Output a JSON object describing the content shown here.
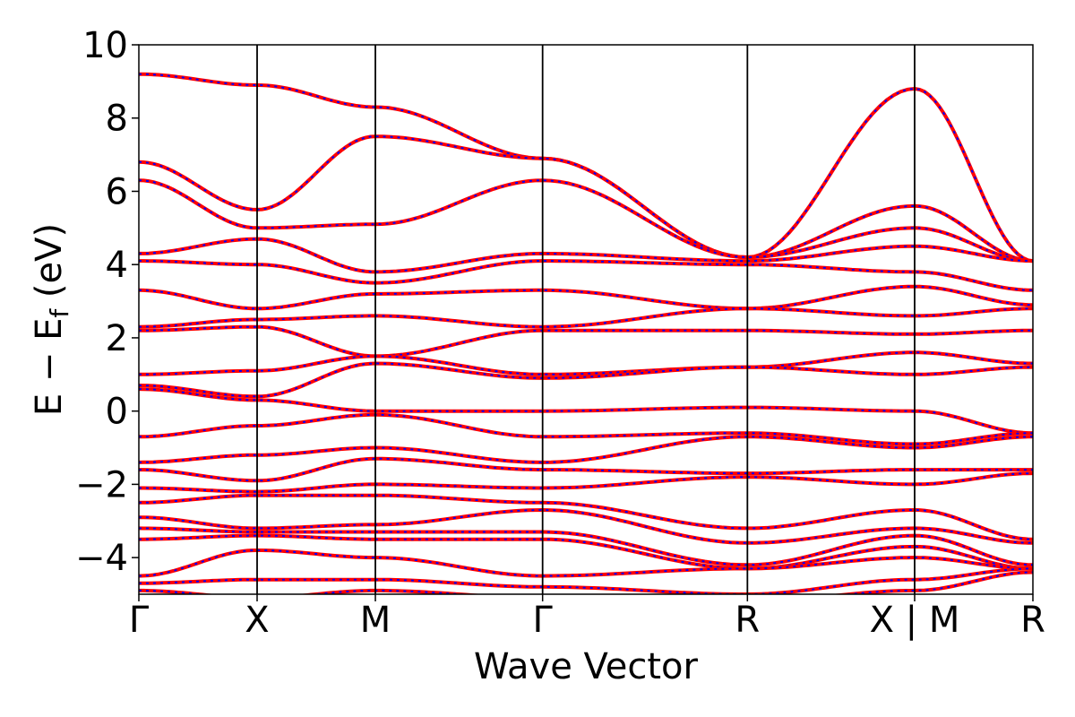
{
  "chart_data": {
    "type": "line",
    "xlabel": "Wave Vector",
    "ylabel": "E − E",
    "ylabel_sub": "f",
    "ylabel_unit": " (eV)",
    "ylim": [
      -5,
      10
    ],
    "yticks": [
      -4,
      -2,
      0,
      2,
      4,
      6,
      8,
      10
    ],
    "ytick_labels": [
      "−4",
      "−2",
      "0",
      "2",
      "4",
      "6",
      "8",
      "10"
    ],
    "grid": false,
    "legend": "none",
    "kpath": [
      {
        "label": "Γ",
        "pos": 0.0
      },
      {
        "label": "X",
        "pos": 0.5
      },
      {
        "label": "M",
        "pos": 1.0
      },
      {
        "label": "Γ",
        "pos": 1.707
      },
      {
        "label": "R",
        "pos": 2.573
      },
      {
        "label": "X | M",
        "pos": 3.28
      },
      {
        "label": "R",
        "pos": 3.78
      }
    ],
    "colors": {
      "band_primary": "#ff0000",
      "band_secondary": "#0000ff",
      "axis": "#000000"
    },
    "series": [
      {
        "values": [
          9.2,
          8.9,
          8.3,
          6.9,
          4.2,
          8.8,
          4.1
        ]
      },
      {
        "values": [
          6.8,
          5.5,
          7.5,
          6.9,
          4.2,
          5.6,
          4.1
        ]
      },
      {
        "values": [
          6.3,
          5.0,
          5.1,
          6.3,
          4.2,
          5.0,
          4.1
        ]
      },
      {
        "values": [
          4.3,
          4.7,
          3.8,
          4.3,
          4.1,
          4.5,
          4.1
        ]
      },
      {
        "values": [
          4.1,
          4.0,
          3.5,
          4.1,
          4.0,
          3.8,
          3.3
        ]
      },
      {
        "values": [
          3.3,
          2.8,
          3.2,
          3.3,
          2.8,
          3.4,
          2.9
        ]
      },
      {
        "values": [
          2.3,
          2.5,
          2.6,
          2.3,
          2.8,
          2.6,
          2.8
        ]
      },
      {
        "values": [
          2.2,
          2.3,
          1.5,
          2.2,
          2.2,
          2.1,
          2.2
        ]
      },
      {
        "values": [
          1.0,
          1.1,
          1.5,
          1.0,
          1.2,
          1.6,
          1.3
        ]
      },
      {
        "values": [
          0.7,
          0.4,
          1.3,
          0.9,
          1.2,
          1.0,
          1.2
        ]
      },
      {
        "values": [
          0.6,
          0.3,
          0.0,
          0.0,
          0.1,
          0.0,
          -0.6
        ]
      },
      {
        "values": [
          -0.7,
          -0.4,
          -0.1,
          -0.7,
          -0.6,
          -0.9,
          -0.6
        ]
      },
      {
        "values": [
          -1.4,
          -1.2,
          -1.0,
          -1.4,
          -0.7,
          -1.0,
          -0.7
        ]
      },
      {
        "values": [
          -1.6,
          -1.9,
          -1.3,
          -1.6,
          -1.7,
          -1.6,
          -1.6
        ]
      },
      {
        "values": [
          -2.1,
          -2.2,
          -2.0,
          -2.1,
          -1.8,
          -2.0,
          -1.7
        ]
      },
      {
        "values": [
          -2.5,
          -2.3,
          -2.3,
          -2.5,
          -3.2,
          -2.7,
          -3.5
        ]
      },
      {
        "values": [
          -2.9,
          -3.2,
          -3.1,
          -2.7,
          -3.6,
          -3.2,
          -3.6
        ]
      },
      {
        "values": [
          -3.2,
          -3.3,
          -3.3,
          -3.3,
          -4.2,
          -3.4,
          -4.2
        ]
      },
      {
        "values": [
          -3.5,
          -3.4,
          -3.5,
          -3.5,
          -4.3,
          -3.7,
          -4.3
        ]
      },
      {
        "values": [
          -4.5,
          -3.8,
          -4.0,
          -4.5,
          -4.3,
          -4.0,
          -4.3
        ]
      },
      {
        "values": [
          -4.7,
          -4.6,
          -4.6,
          -4.8,
          -5.0,
          -4.6,
          -4.3
        ]
      },
      {
        "values": [
          -4.9,
          -5.1,
          -4.9,
          -5.1,
          -5.2,
          -4.9,
          -4.4
        ]
      }
    ]
  }
}
